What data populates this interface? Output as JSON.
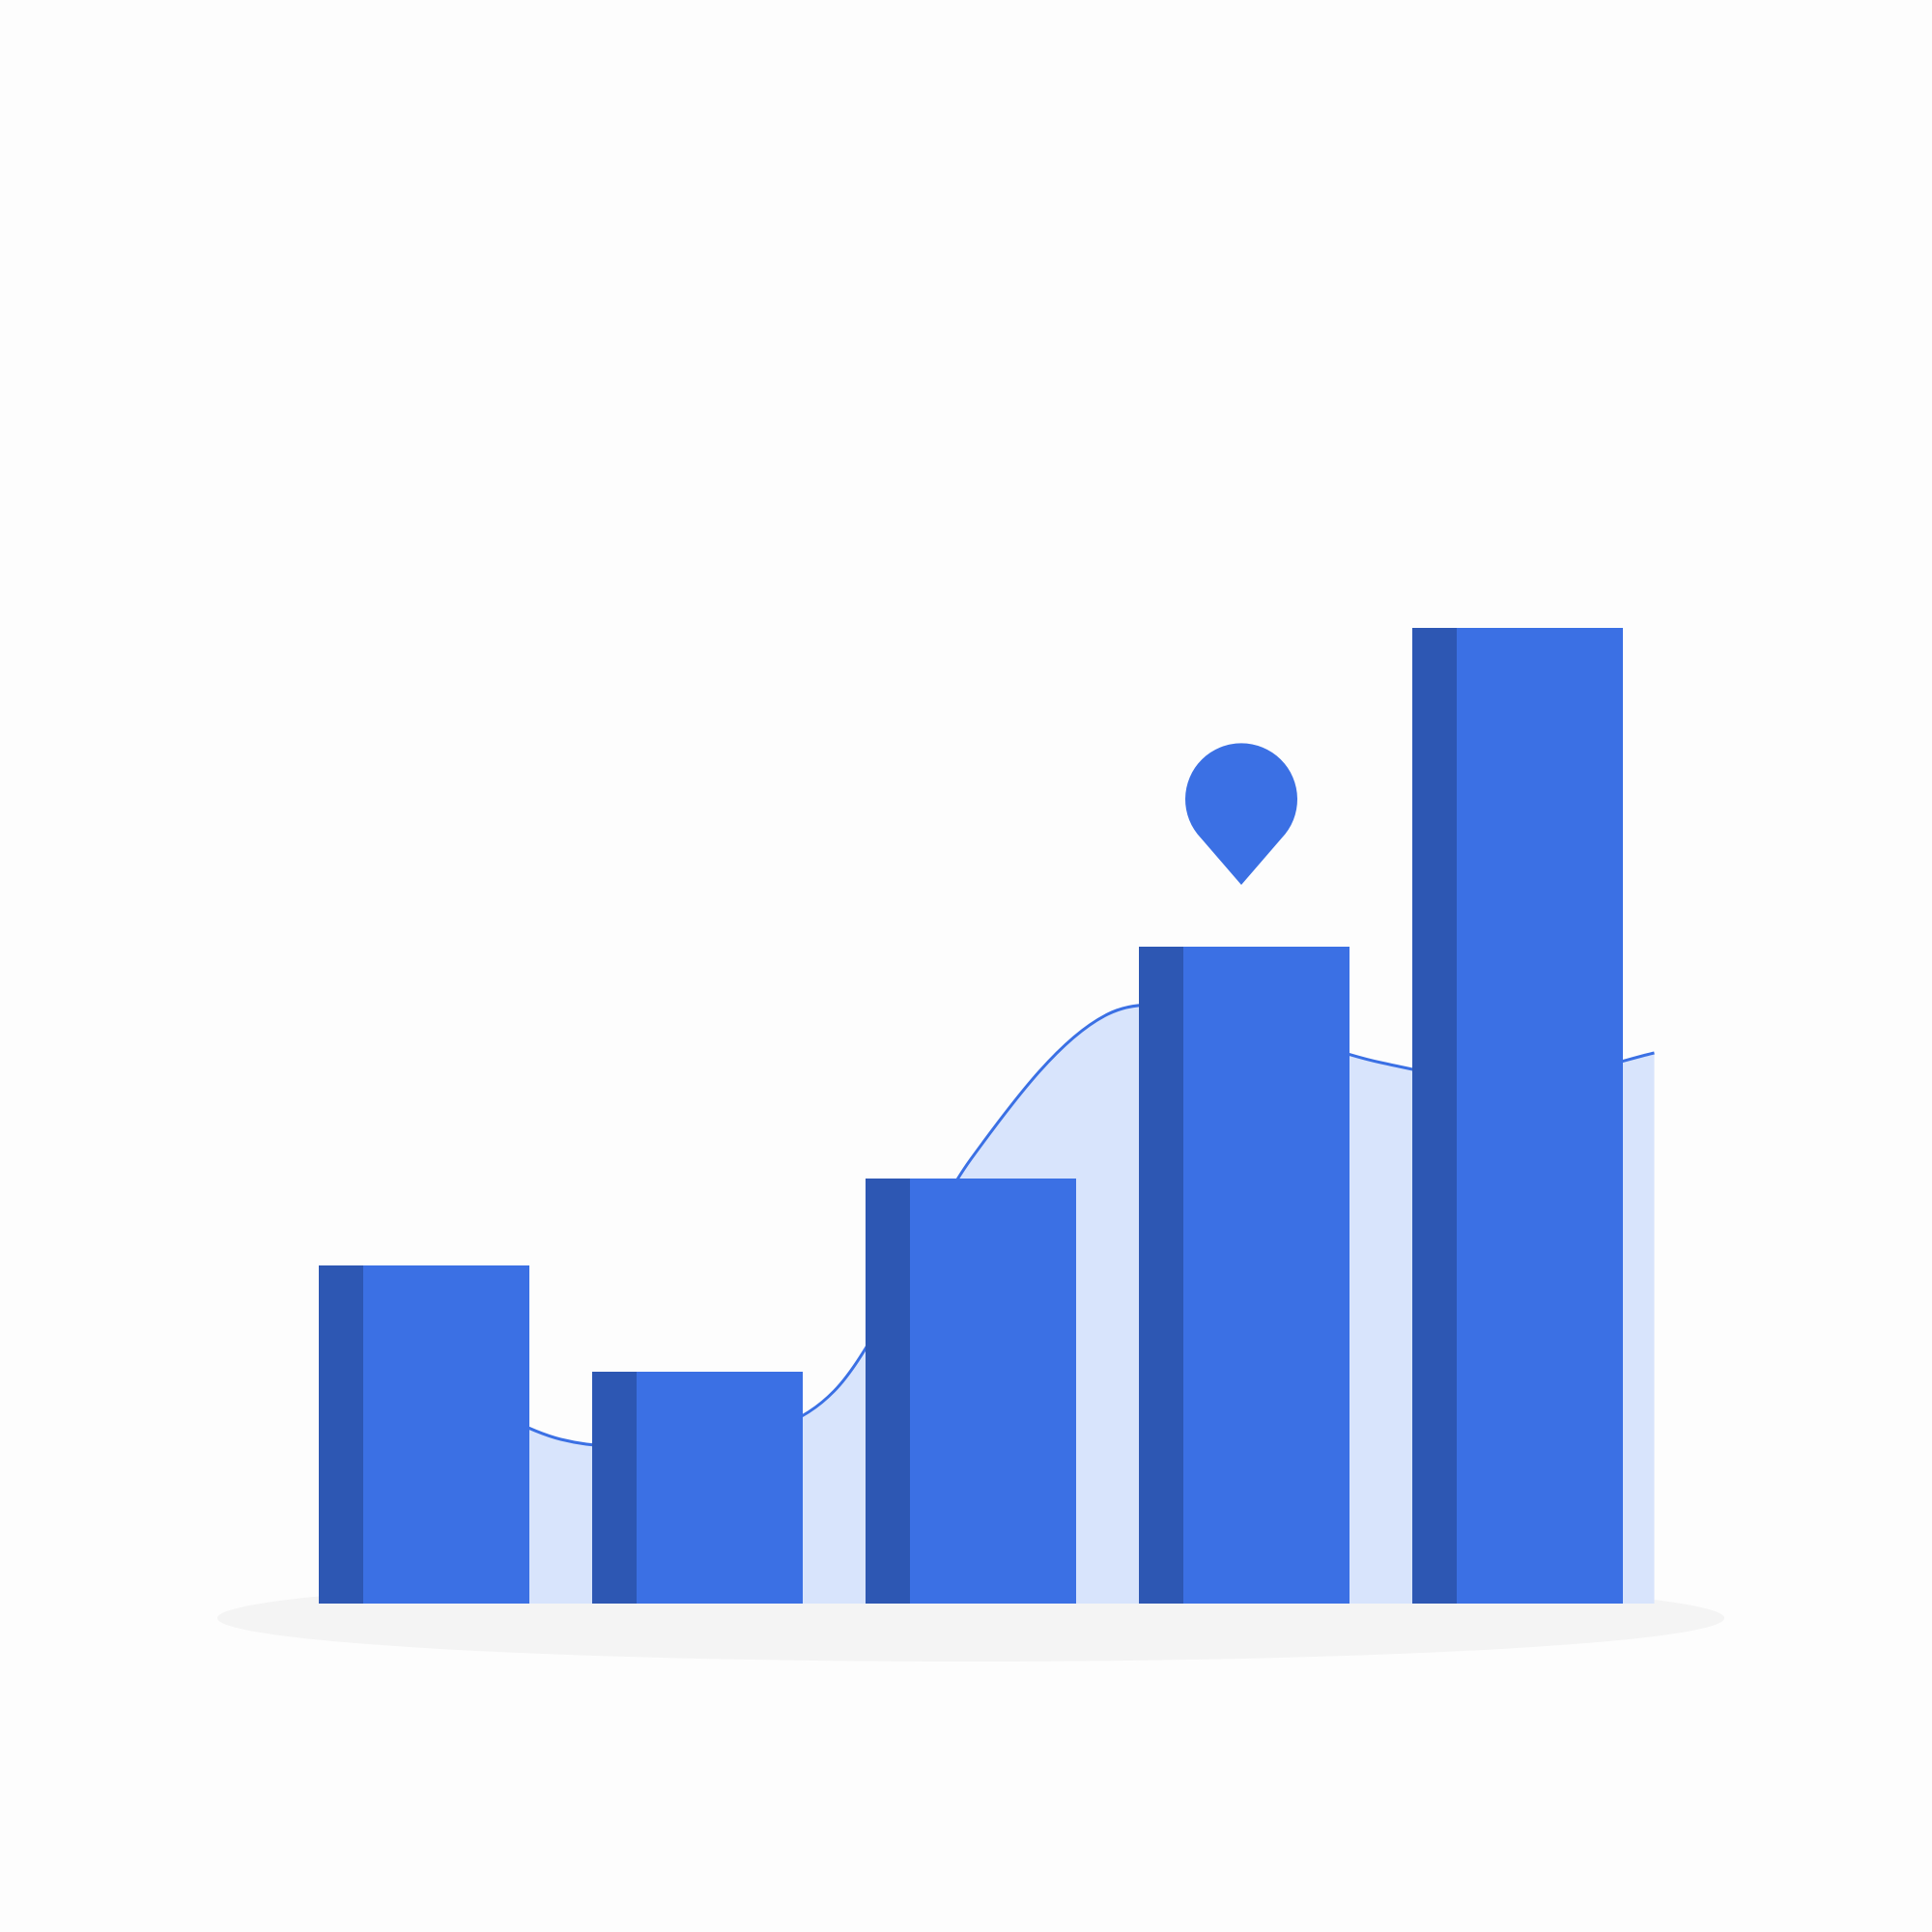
{
  "chart_data": {
    "type": "bar",
    "categories": [
      "",
      "",
      "",
      "",
      ""
    ],
    "values": [
      35,
      24,
      44,
      68,
      101
    ],
    "ylim": [
      0,
      110
    ],
    "trend_line": {
      "type": "area",
      "x": [
        0,
        0.5,
        1,
        1.5,
        2,
        2.5,
        3,
        3.5,
        4,
        4.5
      ],
      "values": [
        24,
        17,
        17,
        22,
        46,
        61,
        60,
        56,
        54,
        57
      ]
    },
    "marker": {
      "category_index": 3,
      "shape": "location-pin-icon"
    },
    "grid": false,
    "legend": "none",
    "colors": {
      "bar_front": "#3b70e4",
      "bar_side": "#2d57b3",
      "area_fill": "#d8e4fc",
      "area_stroke": "#3b70e4",
      "shadow": "#f4f4f4",
      "marker": "#3b70e4",
      "background": "#fdfdfd"
    }
  }
}
